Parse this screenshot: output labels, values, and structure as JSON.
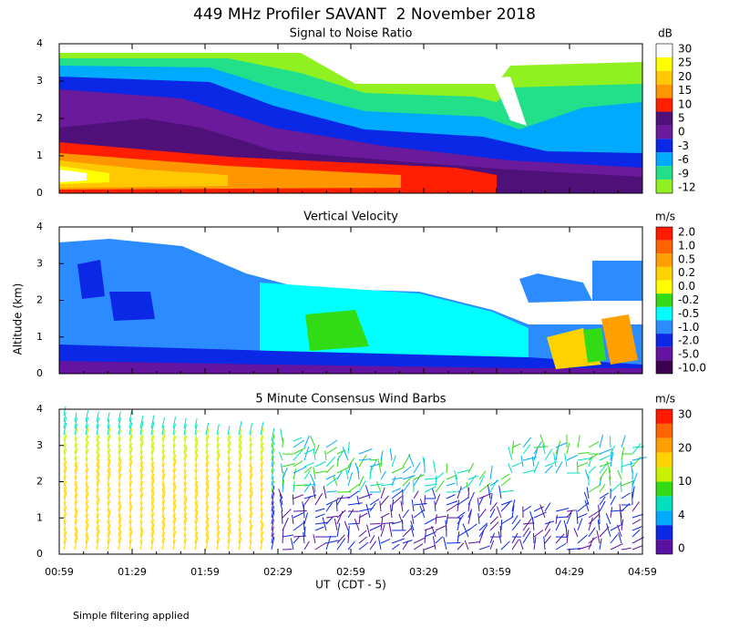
{
  "title": "449 MHz Profiler SAVANT  2 November 2018",
  "y_axis_label": "Altitude (km)",
  "x_axis_label": "UT  (CDT - 5)",
  "footnote": "Simple filtering applied",
  "time_labels": [
    "00:59",
    "01:29",
    "01:59",
    "02:29",
    "02:59",
    "03:29",
    "03:59",
    "04:29",
    "04:59"
  ],
  "chart_data": [
    {
      "type": "contour",
      "title": "Signal to Noise Ratio",
      "ylim": [
        0,
        4
      ],
      "yticks": [
        0,
        1,
        2,
        3,
        4
      ],
      "colorbar": {
        "unit": "dB",
        "ticks": [
          30,
          25,
          20,
          15,
          10,
          5,
          0,
          -3,
          -6,
          -9,
          -12
        ],
        "colors": [
          "#ffffff",
          "#ffff00",
          "#ffc800",
          "#ff9600",
          "#ff1e00",
          "#50107a",
          "#6a1a9a",
          "#0a28e6",
          "#00aaff",
          "#22e08a",
          "#90f020"
        ]
      }
    },
    {
      "type": "contour",
      "title": "Vertical Velocity",
      "ylim": [
        0,
        4
      ],
      "yticks": [
        0,
        1,
        2,
        3,
        4
      ],
      "colorbar": {
        "unit": "m/s",
        "ticks": [
          {
            "value": 2.0,
            "label": "2.0"
          },
          {
            "value": 1.0,
            "label": "1.0"
          },
          {
            "value": 0.5,
            "label": "0.5"
          },
          {
            "value": 0.2,
            "label": "0.2"
          },
          {
            "value": 0.0,
            "label": "0.0"
          },
          {
            "value": -0.2,
            "label": "-0.2"
          },
          {
            "value": -0.5,
            "label": "-0.5"
          },
          {
            "value": -1.0,
            "label": "-1.0"
          },
          {
            "value": -2.0,
            "label": "-2.0"
          },
          {
            "value": -5.0,
            "label": "-5.0"
          },
          {
            "value": -10.0,
            "label": "-10.0"
          }
        ],
        "colors": [
          "#ff1a00",
          "#ff6400",
          "#ffa000",
          "#ffd200",
          "#ffff00",
          "#32dc14",
          "#00ffff",
          "#2c8cff",
          "#0a28e6",
          "#6414a0",
          "#3c0050"
        ]
      }
    },
    {
      "type": "wind-barbs",
      "title": "5 Minute Consensus Wind Barbs",
      "ylim": [
        0,
        4
      ],
      "yticks": [
        0,
        1,
        2,
        3,
        4
      ],
      "colorbar": {
        "unit": "m/s",
        "ticks": [
          30,
          20,
          10,
          4,
          0
        ],
        "colors": [
          "#ff1a00",
          "#ff6400",
          "#ffa000",
          "#ffd200",
          "#c8f000",
          "#32dc14",
          "#00e0c0",
          "#00aaff",
          "#0a28e6",
          "#5a10a0"
        ]
      }
    }
  ]
}
